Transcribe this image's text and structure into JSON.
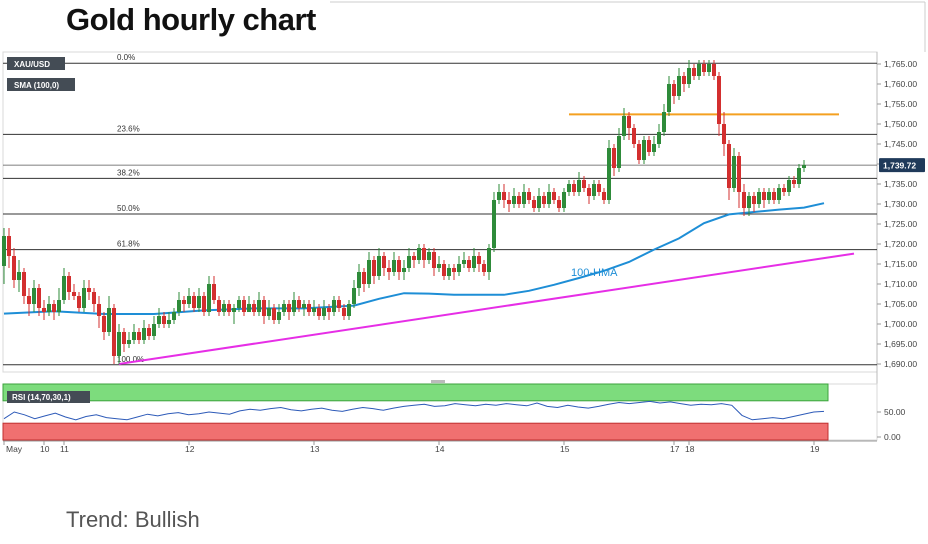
{
  "title": "Gold hourly chart",
  "trend_text": "Trend: Bullish",
  "chart_data": {
    "type": "candlestick",
    "symbol": "XAU/USD",
    "indicator_label": "SMA (100,0)",
    "current_price": "1,739.72",
    "ylim": [
      1688,
      1768
    ],
    "y_ticks": [
      "1,765.00",
      "1,760.00",
      "1,755.00",
      "1,750.00",
      "1,745.00",
      "1,740.00",
      "1,735.00",
      "1,730.00",
      "1,725.00",
      "1,720.00",
      "1,715.00",
      "1,710.00",
      "1,705.00",
      "1,700.00",
      "1,695.00",
      "1,690.00"
    ],
    "y_tick_values": [
      1765,
      1760,
      1755,
      1750,
      1745,
      1740,
      1735,
      1730,
      1725,
      1720,
      1715,
      1710,
      1705,
      1700,
      1695,
      1690
    ],
    "x_ticks": [
      {
        "label": "May",
        "x": 0
      },
      {
        "label": "10",
        "x": 8
      },
      {
        "label": "11",
        "x": 12
      },
      {
        "label": "12",
        "x": 37
      },
      {
        "label": "13",
        "x": 62
      },
      {
        "label": "14",
        "x": 87
      },
      {
        "label": "15",
        "x": 112
      },
      {
        "label": "17",
        "x": 134
      },
      {
        "label": "18",
        "x": 137
      },
      {
        "label": "19",
        "x": 162
      }
    ],
    "fibonacci": [
      {
        "label": "0.0%",
        "value": 1765.2
      },
      {
        "label": "23.6%",
        "value": 1747.4
      },
      {
        "label": "38.2%",
        "value": 1736.4
      },
      {
        "label": "50.0%",
        "value": 1727.5
      },
      {
        "label": "61.8%",
        "value": 1718.6
      },
      {
        "label": "100.0%",
        "value": 1689.8
      }
    ],
    "resistance": {
      "value": 1752.4,
      "x_start": 113,
      "x_end": 167
    },
    "trendline": {
      "x": [
        23,
        170
      ],
      "y": [
        1690.0,
        1717.6
      ]
    },
    "hma": {
      "label": "100-HMA",
      "x": [
        0,
        10,
        20,
        30,
        40,
        50,
        60,
        70,
        75,
        80,
        85,
        90,
        95,
        100,
        105,
        110,
        115,
        120,
        125,
        130,
        135,
        140,
        145,
        150,
        155,
        160,
        164
      ],
      "y": [
        1702.6,
        1703.2,
        1702.5,
        1702.5,
        1703.4,
        1703.9,
        1703.9,
        1704.6,
        1706.3,
        1707.7,
        1707.6,
        1707.3,
        1707.3,
        1707.3,
        1708.3,
        1709.8,
        1711.5,
        1713.3,
        1715.5,
        1718.6,
        1721.4,
        1725.2,
        1727.4,
        1728.0,
        1728.6,
        1729.1,
        1730.2
      ]
    },
    "rsi": {
      "label": "RSI (14,70,30,1)",
      "levels": [
        "50.00",
        "0.00"
      ],
      "values": [
        38,
        50,
        45,
        38,
        43,
        48,
        41,
        36,
        42,
        45,
        40,
        38,
        36,
        41,
        46,
        43,
        47,
        49,
        45,
        47,
        50,
        48,
        46,
        52,
        55,
        53,
        56,
        58,
        54,
        52,
        55,
        57,
        53,
        51,
        55,
        58,
        56,
        53,
        57,
        60,
        62,
        64,
        60,
        61,
        65,
        63,
        61,
        64,
        62,
        65,
        63,
        61,
        66,
        60,
        58,
        62,
        59,
        57,
        60,
        64,
        67,
        65,
        67,
        69,
        66,
        68,
        65,
        62,
        64,
        63,
        65,
        62,
        44,
        36,
        38,
        40,
        38,
        42,
        46,
        50,
        51
      ]
    },
    "candles": [
      [
        0,
        1714.5,
        1722,
        1724,
        1710
      ],
      [
        1,
        1722,
        1717,
        1724,
        1714
      ],
      [
        2,
        1717,
        1711,
        1719,
        1709
      ],
      [
        3,
        1711,
        1713,
        1716,
        1708
      ],
      [
        4,
        1713,
        1707,
        1714,
        1705
      ],
      [
        5,
        1707,
        1705,
        1709,
        1702
      ],
      [
        6,
        1705,
        1709,
        1711,
        1703
      ],
      [
        7,
        1709,
        1704,
        1710,
        1702
      ],
      [
        8,
        1704,
        1703,
        1706,
        1701
      ],
      [
        9,
        1703,
        1705,
        1707,
        1702
      ],
      [
        10,
        1705,
        1703,
        1706,
        1701
      ],
      [
        11,
        1703,
        1706,
        1709,
        1702
      ],
      [
        12,
        1706,
        1712,
        1714,
        1705
      ],
      [
        13,
        1712,
        1708,
        1713,
        1706
      ],
      [
        14,
        1708,
        1707,
        1710,
        1706
      ],
      [
        15,
        1707,
        1704,
        1708,
        1703
      ],
      [
        16,
        1704,
        1709,
        1711,
        1703
      ],
      [
        17,
        1709,
        1708,
        1711,
        1706
      ],
      [
        18,
        1708,
        1705,
        1709,
        1703
      ],
      [
        19,
        1705,
        1702,
        1707,
        1699
      ],
      [
        20,
        1702,
        1698,
        1703,
        1696
      ],
      [
        21,
        1698,
        1704,
        1707,
        1697
      ],
      [
        22,
        1704,
        1692,
        1705,
        1690
      ],
      [
        23,
        1692,
        1698,
        1700,
        1690
      ],
      [
        24,
        1698,
        1695,
        1699,
        1693
      ],
      [
        25,
        1695,
        1696,
        1698,
        1694
      ],
      [
        26,
        1696,
        1698,
        1700,
        1695
      ],
      [
        27,
        1698,
        1696,
        1699,
        1695
      ],
      [
        28,
        1696,
        1699,
        1701,
        1695
      ],
      [
        29,
        1699,
        1697,
        1700,
        1696
      ],
      [
        30,
        1697,
        1700,
        1702,
        1696
      ],
      [
        31,
        1700,
        1702,
        1704,
        1699
      ],
      [
        32,
        1702,
        1700,
        1703,
        1699
      ],
      [
        33,
        1700,
        1701,
        1703,
        1699
      ],
      [
        34,
        1701,
        1703,
        1704,
        1700
      ],
      [
        35,
        1703,
        1706,
        1708,
        1702
      ],
      [
        36,
        1706,
        1705,
        1707,
        1703
      ],
      [
        37,
        1705,
        1707,
        1709,
        1704
      ],
      [
        38,
        1707,
        1704,
        1708,
        1703
      ],
      [
        39,
        1704,
        1707,
        1709,
        1703
      ],
      [
        40,
        1707,
        1703,
        1708,
        1702
      ],
      [
        41,
        1703,
        1710,
        1712,
        1702
      ],
      [
        42,
        1710,
        1706,
        1712,
        1705
      ],
      [
        43,
        1706,
        1703,
        1707,
        1702
      ],
      [
        44,
        1703,
        1705,
        1706,
        1702
      ],
      [
        45,
        1705,
        1703,
        1706,
        1702
      ],
      [
        46,
        1703,
        1704,
        1705,
        1700
      ],
      [
        47,
        1704,
        1706,
        1707,
        1703
      ],
      [
        48,
        1706,
        1703,
        1707,
        1702
      ],
      [
        49,
        1703,
        1705,
        1707,
        1703
      ],
      [
        50,
        1705,
        1703,
        1706,
        1702
      ],
      [
        51,
        1703,
        1706,
        1708,
        1702
      ],
      [
        52,
        1706,
        1702,
        1707,
        1700
      ],
      [
        53,
        1702,
        1704,
        1706,
        1701
      ],
      [
        54,
        1704,
        1701,
        1705,
        1700
      ],
      [
        55,
        1701,
        1703,
        1705,
        1700
      ],
      [
        56,
        1703,
        1705,
        1706,
        1702
      ],
      [
        57,
        1705,
        1703,
        1706,
        1701
      ],
      [
        58,
        1703,
        1706,
        1708,
        1702
      ],
      [
        59,
        1706,
        1704,
        1707,
        1703
      ],
      [
        60,
        1704,
        1705,
        1706,
        1702
      ],
      [
        61,
        1705,
        1703,
        1706,
        1702
      ],
      [
        62,
        1703,
        1704,
        1706,
        1702
      ],
      [
        63,
        1704,
        1702,
        1705,
        1701
      ],
      [
        64,
        1702,
        1704,
        1706,
        1701
      ],
      [
        65,
        1704,
        1703,
        1705,
        1701
      ],
      [
        66,
        1703,
        1706,
        1707,
        1702
      ],
      [
        67,
        1706,
        1704,
        1707,
        1703
      ],
      [
        68,
        1704,
        1702,
        1705,
        1701
      ],
      [
        69,
        1702,
        1705,
        1706,
        1701
      ],
      [
        70,
        1705,
        1709,
        1711,
        1704
      ],
      [
        71,
        1709,
        1713,
        1715,
        1707
      ],
      [
        72,
        1713,
        1710,
        1714,
        1708
      ],
      [
        73,
        1710,
        1716,
        1718,
        1709
      ],
      [
        74,
        1716,
        1712,
        1717,
        1710
      ],
      [
        75,
        1712,
        1717,
        1719,
        1711
      ],
      [
        76,
        1717,
        1714,
        1718,
        1712
      ],
      [
        77,
        1714,
        1713,
        1716,
        1711
      ],
      [
        78,
        1713,
        1716,
        1718,
        1712
      ],
      [
        79,
        1716,
        1713,
        1717,
        1711
      ],
      [
        80,
        1713,
        1714,
        1716,
        1711
      ],
      [
        81,
        1714,
        1717,
        1719,
        1713
      ],
      [
        82,
        1717,
        1716,
        1718,
        1714
      ],
      [
        83,
        1716,
        1719,
        1720,
        1715
      ],
      [
        84,
        1719,
        1716,
        1720,
        1714
      ],
      [
        85,
        1716,
        1718,
        1719,
        1715
      ],
      [
        86,
        1718,
        1714,
        1719,
        1712
      ],
      [
        87,
        1714,
        1715,
        1717,
        1713
      ],
      [
        88,
        1715,
        1712,
        1716,
        1711
      ],
      [
        89,
        1712,
        1714,
        1715,
        1711
      ],
      [
        90,
        1714,
        1713,
        1715,
        1711
      ],
      [
        91,
        1713,
        1715,
        1717,
        1712
      ],
      [
        92,
        1715,
        1716,
        1718,
        1714
      ],
      [
        93,
        1716,
        1714,
        1717,
        1713
      ],
      [
        94,
        1714,
        1717,
        1719,
        1713
      ],
      [
        95,
        1717,
        1715,
        1718,
        1713
      ],
      [
        96,
        1715,
        1713,
        1716,
        1712
      ],
      [
        97,
        1713,
        1719,
        1720,
        1711
      ],
      [
        98,
        1719,
        1731,
        1733,
        1718
      ],
      [
        99,
        1731,
        1733,
        1735,
        1730
      ],
      [
        100,
        1733,
        1731,
        1735,
        1729
      ],
      [
        101,
        1731,
        1730,
        1733,
        1728
      ],
      [
        102,
        1730,
        1732,
        1734,
        1729
      ],
      [
        103,
        1732,
        1730,
        1733,
        1729
      ],
      [
        104,
        1730,
        1733,
        1735,
        1729
      ],
      [
        105,
        1733,
        1731,
        1734,
        1730
      ],
      [
        106,
        1731,
        1729,
        1732,
        1728
      ],
      [
        107,
        1729,
        1732,
        1734,
        1728
      ],
      [
        108,
        1732,
        1730,
        1733,
        1729
      ],
      [
        109,
        1730,
        1733,
        1735,
        1729
      ],
      [
        110,
        1733,
        1731,
        1734,
        1730
      ],
      [
        111,
        1731,
        1729,
        1732,
        1728
      ],
      [
        112,
        1729,
        1733,
        1734,
        1728
      ],
      [
        113,
        1733,
        1735,
        1736,
        1732
      ],
      [
        114,
        1735,
        1733,
        1736,
        1732
      ],
      [
        115,
        1733,
        1736,
        1738,
        1732
      ],
      [
        116,
        1736,
        1734,
        1737,
        1733
      ],
      [
        117,
        1734,
        1732,
        1735,
        1730
      ],
      [
        118,
        1732,
        1735,
        1736,
        1731
      ],
      [
        119,
        1735,
        1733,
        1736,
        1732
      ],
      [
        120,
        1733,
        1731,
        1734,
        1730
      ],
      [
        121,
        1731,
        1744,
        1746,
        1730
      ],
      [
        122,
        1744,
        1739,
        1745,
        1737
      ],
      [
        123,
        1739,
        1747,
        1749,
        1738
      ],
      [
        124,
        1747,
        1752,
        1754,
        1746
      ],
      [
        125,
        1752,
        1749,
        1753,
        1746
      ],
      [
        126,
        1749,
        1745,
        1750,
        1744
      ],
      [
        127,
        1745,
        1741,
        1746,
        1740
      ],
      [
        128,
        1741,
        1746,
        1747,
        1740
      ],
      [
        129,
        1746,
        1743,
        1747,
        1742
      ],
      [
        130,
        1743,
        1745,
        1747,
        1742
      ],
      [
        131,
        1745,
        1748,
        1750,
        1744
      ],
      [
        132,
        1748,
        1753,
        1755,
        1747
      ],
      [
        133,
        1753,
        1760,
        1762,
        1752
      ],
      [
        134,
        1760,
        1757,
        1761,
        1755
      ],
      [
        135,
        1757,
        1762,
        1764,
        1756
      ],
      [
        136,
        1762,
        1760,
        1763,
        1758
      ],
      [
        137,
        1760,
        1764,
        1766,
        1759
      ],
      [
        138,
        1764,
        1762,
        1765,
        1761
      ],
      [
        139,
        1762,
        1765,
        1766,
        1761
      ],
      [
        140,
        1765,
        1763,
        1766,
        1762
      ],
      [
        141,
        1763,
        1765,
        1766,
        1762
      ],
      [
        142,
        1765,
        1762,
        1766,
        1761
      ],
      [
        143,
        1762,
        1750,
        1763,
        1747
      ],
      [
        144,
        1750,
        1745,
        1753,
        1742
      ],
      [
        145,
        1745,
        1734,
        1746,
        1731
      ],
      [
        146,
        1734,
        1742,
        1744,
        1733
      ],
      [
        147,
        1742,
        1733,
        1743,
        1729
      ],
      [
        148,
        1733,
        1729,
        1735,
        1727
      ],
      [
        149,
        1729,
        1732,
        1733,
        1727
      ],
      [
        150,
        1732,
        1730,
        1733,
        1728
      ],
      [
        151,
        1730,
        1733,
        1734,
        1729
      ],
      [
        152,
        1733,
        1731,
        1734,
        1729
      ],
      [
        153,
        1731,
        1733,
        1734,
        1730
      ],
      [
        154,
        1733,
        1731,
        1734,
        1730
      ],
      [
        155,
        1731,
        1734,
        1735,
        1730
      ],
      [
        156,
        1734,
        1733,
        1735,
        1732
      ],
      [
        157,
        1733,
        1736,
        1737,
        1732
      ],
      [
        158,
        1736,
        1735,
        1737,
        1734
      ],
      [
        159,
        1735,
        1739,
        1740,
        1734
      ],
      [
        160,
        1739,
        1739.72,
        1741,
        1738
      ]
    ]
  }
}
